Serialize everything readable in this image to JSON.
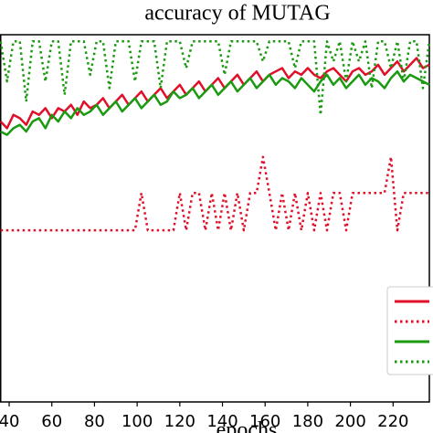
{
  "chart_data": {
    "type": "line",
    "title": "accuracy of MUTAG",
    "x_label": "epochs",
    "x": [
      36,
      39,
      42,
      45,
      48,
      51,
      54,
      57,
      60,
      63,
      66,
      69,
      72,
      75,
      78,
      81,
      84,
      87,
      90,
      93,
      96,
      99,
      102,
      105,
      108,
      111,
      114,
      117,
      120,
      123,
      126,
      129,
      132,
      135,
      138,
      141,
      144,
      147,
      150,
      153,
      156,
      159,
      162,
      165,
      168,
      171,
      174,
      177,
      180,
      183,
      186,
      189,
      192,
      195,
      198,
      201,
      204,
      207,
      210,
      213,
      216,
      219,
      222,
      225,
      228,
      231,
      234,
      237
    ],
    "xlim": [
      35.7,
      237
    ],
    "xticks": [
      40,
      60,
      80,
      100,
      120,
      140,
      160,
      180,
      200,
      220
    ],
    "ylim": [
      0.45,
      1.0
    ],
    "series": [
      {
        "color": "#e0102a",
        "style": "solid",
        "values": [
          0.87,
          0.86,
          0.88,
          0.875,
          0.865,
          0.885,
          0.88,
          0.89,
          0.875,
          0.89,
          0.885,
          0.895,
          0.88,
          0.9,
          0.89,
          0.895,
          0.905,
          0.89,
          0.9,
          0.91,
          0.895,
          0.905,
          0.915,
          0.9,
          0.91,
          0.92,
          0.905,
          0.915,
          0.925,
          0.91,
          0.92,
          0.93,
          0.915,
          0.925,
          0.935,
          0.92,
          0.93,
          0.94,
          0.925,
          0.935,
          0.945,
          0.93,
          0.94,
          0.945,
          0.95,
          0.935,
          0.945,
          0.94,
          0.95,
          0.94,
          0.935,
          0.945,
          0.95,
          0.94,
          0.93,
          0.945,
          0.95,
          0.94,
          0.945,
          0.955,
          0.94,
          0.95,
          0.96,
          0.945,
          0.955,
          0.965,
          0.95,
          0.955
        ]
      },
      {
        "color": "#e0102a",
        "style": "dotted",
        "values": [
          0.707,
          0.707,
          0.707,
          0.707,
          0.707,
          0.707,
          0.707,
          0.707,
          0.707,
          0.707,
          0.707,
          0.707,
          0.707,
          0.707,
          0.707,
          0.707,
          0.707,
          0.707,
          0.707,
          0.707,
          0.707,
          0.707,
          0.763,
          0.707,
          0.707,
          0.707,
          0.707,
          0.707,
          0.763,
          0.707,
          0.763,
          0.763,
          0.707,
          0.763,
          0.707,
          0.763,
          0.707,
          0.763,
          0.707,
          0.763,
          0.763,
          0.817,
          0.763,
          0.707,
          0.763,
          0.707,
          0.763,
          0.707,
          0.763,
          0.707,
          0.763,
          0.707,
          0.763,
          0.763,
          0.707,
          0.763,
          0.763,
          0.763,
          0.763,
          0.763,
          0.763,
          0.817,
          0.707,
          0.763,
          0.763,
          0.763,
          0.763,
          0.763
        ]
      },
      {
        "color": "#1a9a10",
        "style": "solid",
        "values": [
          0.855,
          0.85,
          0.86,
          0.865,
          0.855,
          0.87,
          0.875,
          0.86,
          0.88,
          0.87,
          0.885,
          0.875,
          0.89,
          0.88,
          0.885,
          0.895,
          0.88,
          0.89,
          0.9,
          0.885,
          0.895,
          0.905,
          0.89,
          0.9,
          0.91,
          0.895,
          0.9,
          0.915,
          0.905,
          0.91,
          0.92,
          0.905,
          0.915,
          0.925,
          0.91,
          0.92,
          0.93,
          0.915,
          0.925,
          0.935,
          0.92,
          0.93,
          0.94,
          0.925,
          0.935,
          0.93,
          0.92,
          0.935,
          0.925,
          0.915,
          0.93,
          0.94,
          0.925,
          0.935,
          0.92,
          0.93,
          0.94,
          0.925,
          0.935,
          0.93,
          0.92,
          0.935,
          0.945,
          0.93,
          0.94,
          0.935,
          0.93,
          0.925
        ]
      },
      {
        "color": "#1a9a10",
        "style": "dotted",
        "values": [
          0.99,
          0.93,
          0.99,
          0.99,
          0.9,
          0.99,
          0.99,
          0.93,
          0.99,
          0.99,
          0.91,
          0.99,
          0.99,
          0.99,
          0.94,
          0.99,
          0.99,
          0.92,
          0.99,
          0.99,
          0.99,
          0.93,
          0.99,
          0.99,
          0.99,
          0.92,
          0.99,
          0.99,
          0.99,
          0.95,
          0.99,
          0.99,
          0.99,
          0.99,
          0.99,
          0.94,
          0.99,
          0.99,
          0.99,
          0.99,
          0.99,
          0.96,
          0.99,
          0.99,
          0.99,
          0.99,
          0.95,
          0.99,
          0.99,
          0.99,
          0.88,
          0.99,
          0.96,
          0.99,
          0.93,
          0.99,
          0.96,
          0.99,
          0.92,
          0.99,
          0.99,
          0.95,
          0.99,
          0.93,
          0.99,
          0.99,
          0.92,
          0.99
        ]
      }
    ]
  }
}
